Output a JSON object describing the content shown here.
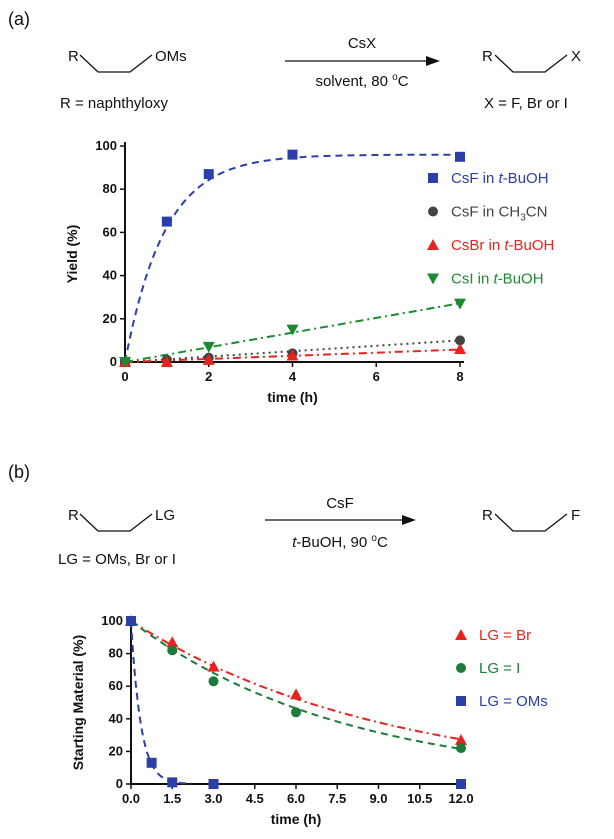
{
  "panels": [
    {
      "label": "(a)",
      "scheme": {
        "reactant": "R",
        "reactant_group": "OMs",
        "reactant_note": "R = naphthyloxy",
        "reagent": "CsX",
        "conditions": "solvent, 80 °C",
        "product": "R",
        "product_group": "X",
        "product_note": "X = F, Br or I"
      }
    },
    {
      "label": "(b)",
      "scheme": {
        "reactant": "R",
        "reactant_group": "LG",
        "reactant_note": "LG = OMs, Br or I",
        "reagent": "CsF",
        "conditions": "t-BuOH, 90 °C",
        "product": "R",
        "product_group": "F"
      }
    }
  ],
  "chart_data": [
    {
      "type": "scatter",
      "xlabel": "time (h)",
      "ylabel": "Yield (%)",
      "xlim": [
        0,
        8
      ],
      "ylim": [
        0,
        100
      ],
      "xticks": [
        "0",
        "2",
        "4",
        "6",
        "8"
      ],
      "yticks": [
        "0",
        "20",
        "40",
        "60",
        "80",
        "100"
      ],
      "legend_position": "right",
      "series": [
        {
          "name": "CsF in t-BuOH",
          "color": "#2b3fa8",
          "marker": "square",
          "line": "dashed",
          "x": [
            0,
            1,
            2,
            4,
            8
          ],
          "y": [
            0,
            65,
            87,
            96,
            95
          ]
        },
        {
          "name": "CsF in CH3CN",
          "color": "#444444",
          "marker": "circle",
          "line": "dotted",
          "x": [
            0,
            1,
            2,
            4,
            8
          ],
          "y": [
            0,
            1,
            2,
            4,
            10
          ]
        },
        {
          "name": "CsBr in t-BuOH",
          "color": "#e8221c",
          "marker": "triangle-up",
          "line": "dash-dot",
          "x": [
            0,
            1,
            2,
            4,
            8
          ],
          "y": [
            0,
            0,
            1,
            3,
            6
          ]
        },
        {
          "name": "CsI in t-BuOH",
          "color": "#1c8a2e",
          "marker": "triangle-down",
          "line": "dash-dot",
          "x": [
            0,
            2,
            4,
            8
          ],
          "y": [
            0,
            7,
            15,
            27
          ]
        }
      ]
    },
    {
      "type": "scatter",
      "xlabel": "time (h)",
      "ylabel": "Starting Material (%)",
      "xlim": [
        0,
        12
      ],
      "ylim": [
        0,
        100
      ],
      "xticks": [
        "0.0",
        "1.5",
        "3.0",
        "4.5",
        "6.0",
        "7.5",
        "9.0",
        "10.5",
        "12.0"
      ],
      "yticks": [
        "0",
        "20",
        "40",
        "60",
        "80",
        "100"
      ],
      "legend_position": "right",
      "series": [
        {
          "name": "LG = Br",
          "color": "#e8221c",
          "marker": "triangle-up",
          "line": "dash-dot",
          "x": [
            0,
            1.5,
            3,
            6,
            12
          ],
          "y": [
            100,
            87,
            72,
            55,
            27
          ]
        },
        {
          "name": "LG = I",
          "color": "#1c7a3a",
          "marker": "circle",
          "line": "dashed",
          "x": [
            0,
            1.5,
            3,
            6,
            12
          ],
          "y": [
            100,
            82,
            63,
            44,
            22
          ]
        },
        {
          "name": "LG = OMs",
          "color": "#2b3fa8",
          "marker": "square",
          "line": "dashed",
          "x": [
            0,
            0.75,
            1.5,
            3,
            12
          ],
          "y": [
            100,
            13,
            1,
            0,
            0
          ]
        }
      ]
    }
  ]
}
